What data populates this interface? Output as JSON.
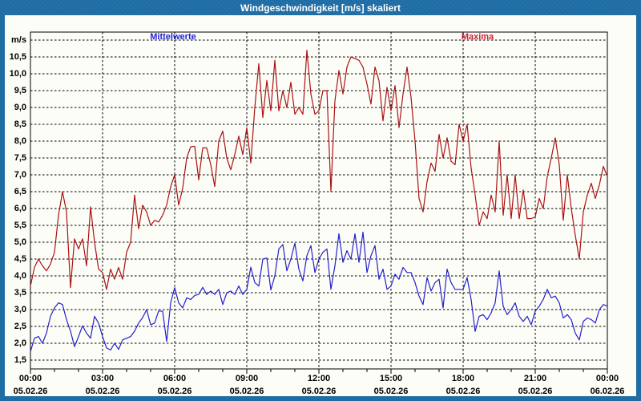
{
  "window": {
    "title": "Windgeschwindigkeit [m/s] skaliert"
  },
  "legend": {
    "mittelwerte_label": "Mittelwerte",
    "maxima_label": "Maxima"
  },
  "colors": {
    "frame": "#1f6da5",
    "title_text": "#ffffff",
    "plot_background": "#fdfdf8",
    "grid": "#000000",
    "axis_text": "#000000",
    "mittelwerte_line": "#2121cc",
    "mittelwerte_label": "#2323d6",
    "maxima_line": "#aa1212",
    "maxima_label": "#cc2233"
  },
  "y_axis": {
    "unit": "m/s"
  },
  "chart_data": {
    "type": "line",
    "title": "Windgeschwindigkeit [m/s] skaliert",
    "ylabel": "m/s",
    "ylim": [
      1.5,
      11.0
    ],
    "y_gridline_step": 0.5,
    "grid": true,
    "legend_position": "top",
    "x_minutes_range": [
      0,
      1440
    ],
    "sample_interval_minutes": 10,
    "y_tick_labels": [
      "10,5",
      "10,0",
      "9,5",
      "9,0",
      "8,5",
      "8,0",
      "7,5",
      "7,0",
      "6,5",
      "6,0",
      "5,5",
      "5,0",
      "4,5",
      "4,0",
      "3,5",
      "3,0",
      "2,5",
      "2,0",
      "1,5"
    ],
    "x_ticks": [
      {
        "hour": 0,
        "time": "00:00",
        "date": "05.02.26"
      },
      {
        "hour": 3,
        "time": "03:00",
        "date": "05.02.26"
      },
      {
        "hour": 6,
        "time": "06:00",
        "date": "05.02.26"
      },
      {
        "hour": 9,
        "time": "09:00",
        "date": "05.02.26"
      },
      {
        "hour": 12,
        "time": "12:00",
        "date": "05.02.26"
      },
      {
        "hour": 15,
        "time": "15:00",
        "date": "05.02.26"
      },
      {
        "hour": 18,
        "time": "18:00",
        "date": "05.02.26"
      },
      {
        "hour": 21,
        "time": "21:00",
        "date": "05.02.26"
      },
      {
        "hour": 24,
        "time": "00:00",
        "date": "06.02.26"
      }
    ],
    "series": [
      {
        "name": "Mittelwerte",
        "color": "#2121cc",
        "values": [
          1.75,
          2.15,
          2.2,
          2.0,
          2.3,
          2.8,
          3.05,
          3.2,
          3.15,
          2.7,
          2.36,
          1.9,
          2.2,
          2.52,
          2.3,
          2.15,
          2.8,
          2.6,
          2.2,
          1.86,
          1.8,
          2.0,
          1.82,
          2.1,
          2.15,
          2.2,
          2.36,
          2.6,
          2.76,
          3.0,
          2.55,
          2.6,
          2.96,
          2.95,
          2.05,
          3.2,
          3.65,
          3.2,
          3.05,
          3.35,
          3.3,
          3.42,
          3.45,
          3.66,
          3.45,
          3.55,
          3.45,
          3.6,
          3.15,
          3.5,
          3.55,
          3.45,
          3.7,
          3.45,
          3.6,
          4.26,
          3.8,
          3.7,
          4.5,
          4.53,
          3.58,
          4.0,
          4.8,
          4.93,
          4.15,
          4.5,
          4.97,
          4.2,
          3.85,
          4.6,
          4.9,
          4.1,
          4.5,
          4.7,
          4.8,
          3.6,
          4.3,
          5.25,
          4.4,
          4.75,
          4.5,
          5.25,
          4.4,
          5.3,
          4.1,
          4.6,
          4.9,
          3.9,
          4.2,
          3.6,
          3.7,
          4.05,
          3.9,
          4.25,
          4.1,
          4.1,
          3.8,
          3.4,
          3.15,
          3.95,
          3.55,
          3.8,
          3.9,
          3.05,
          4.2,
          3.8,
          3.6,
          3.6,
          3.6,
          3.95,
          3.3,
          2.35,
          2.8,
          2.85,
          2.7,
          2.9,
          3.2,
          4.15,
          3.1,
          2.85,
          3.0,
          3.2,
          2.8,
          2.65,
          2.8,
          2.55,
          2.95,
          3.1,
          3.3,
          3.6,
          3.35,
          3.4,
          3.2,
          2.75,
          2.85,
          2.7,
          2.3,
          2.1,
          2.65,
          2.75,
          2.7,
          2.6,
          3.0,
          3.15,
          3.1
        ]
      },
      {
        "name": "Maxima",
        "color": "#aa1212",
        "values": [
          3.7,
          4.25,
          4.5,
          4.3,
          4.15,
          4.35,
          4.7,
          5.8,
          6.5,
          5.9,
          3.65,
          5.1,
          4.8,
          5.1,
          4.3,
          6.05,
          5.0,
          4.2,
          4.1,
          3.6,
          4.2,
          3.9,
          4.25,
          3.9,
          4.7,
          5.0,
          6.4,
          5.4,
          6.1,
          5.9,
          5.5,
          5.65,
          5.6,
          5.8,
          6.1,
          6.65,
          7.0,
          6.1,
          6.6,
          7.5,
          7.83,
          7.85,
          6.85,
          7.8,
          7.8,
          7.3,
          6.65,
          8.0,
          8.3,
          7.5,
          7.15,
          7.6,
          8.15,
          7.6,
          8.4,
          7.35,
          9.0,
          10.3,
          8.7,
          9.8,
          8.9,
          10.4,
          8.9,
          9.5,
          9.0,
          9.75,
          8.8,
          9.0,
          8.8,
          10.7,
          9.4,
          8.8,
          8.9,
          9.5,
          9.5,
          6.5,
          9.2,
          10.1,
          9.4,
          10.2,
          10.5,
          10.45,
          10.4,
          10.2,
          9.7,
          9.1,
          10.2,
          9.8,
          8.6,
          9.6,
          8.9,
          9.65,
          8.4,
          9.4,
          10.2,
          9.3,
          8.0,
          6.3,
          5.9,
          6.8,
          7.35,
          7.1,
          8.2,
          7.5,
          8.1,
          7.4,
          7.3,
          8.5,
          8.0,
          8.5,
          7.2,
          6.4,
          5.5,
          5.9,
          5.7,
          6.4,
          5.9,
          8.0,
          5.8,
          7.0,
          5.7,
          7.0,
          5.7,
          6.55,
          5.7,
          5.7,
          5.75,
          6.3,
          6.0,
          6.95,
          7.5,
          8.1,
          7.3,
          5.65,
          7.0,
          6.0,
          5.2,
          4.5,
          5.9,
          6.4,
          6.75,
          6.3,
          6.7,
          7.25,
          6.95
        ]
      }
    ]
  }
}
